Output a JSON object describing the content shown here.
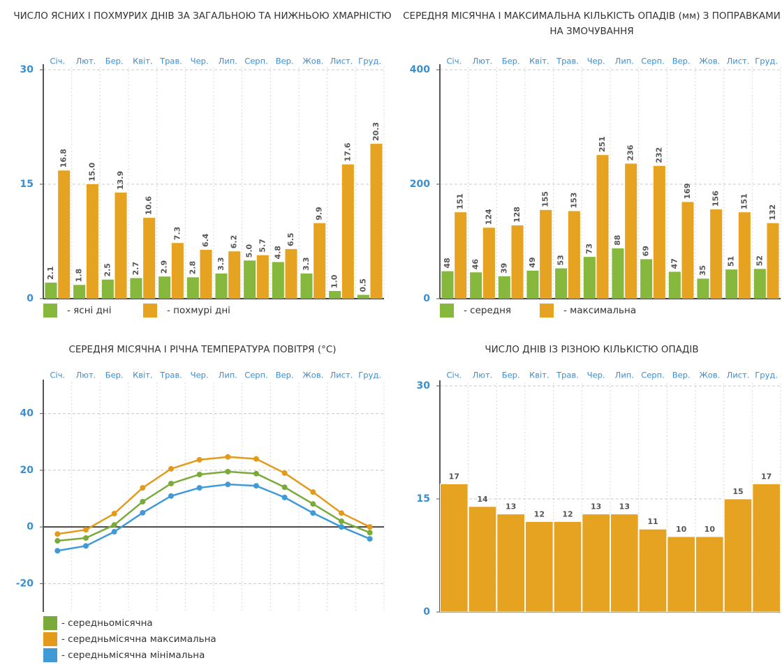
{
  "chart_data": [
    {
      "type": "bar",
      "title": "ЧИСЛО ЯСНИХ І ПОХМУРИХ ДНІВ ЗА ЗАГАЛЬНОЮ ТА НИЖНЬОЮ ХМАРНІСТЮ",
      "categories": [
        "Січ.",
        "Лют.",
        "Бер.",
        "Квіт.",
        "Трав.",
        "Чер.",
        "Лип.",
        "Серп.",
        "Вер.",
        "Жов.",
        "Лист.",
        "Груд."
      ],
      "series": [
        {
          "name": "- ясні дні",
          "color": "#86b83e",
          "values": [
            2.1,
            1.8,
            2.5,
            2.7,
            2.9,
            2.8,
            3.3,
            5.0,
            4.8,
            3.3,
            1.0,
            0.5
          ],
          "value_labels": [
            "2.1",
            "1.8",
            "2.5",
            "2.7",
            "2.9",
            "2.8",
            "3.3",
            "5.0",
            "4.8",
            "3.3",
            "1.0",
            "0.5"
          ]
        },
        {
          "name": "- похмурі дні",
          "color": "#e6a322",
          "values": [
            16.8,
            15.0,
            13.9,
            10.6,
            7.3,
            6.4,
            6.2,
            5.7,
            6.5,
            9.9,
            17.6,
            20.3
          ],
          "value_labels": [
            "16.8",
            "15.0",
            "13.9",
            "10.6",
            "7.3",
            "6.4",
            "6.2",
            "5.7",
            "6.5",
            "9.9",
            "17.6",
            "20.3"
          ]
        }
      ],
      "ylim": [
        0,
        30
      ],
      "yticks": [
        0,
        15,
        30
      ],
      "grid": true,
      "legend": "bottom-left"
    },
    {
      "type": "bar",
      "title": "СЕРЕДНЯ МІСЯЧНА І МАКСИМАЛЬНА КІЛЬКІСТЬ ОПАДІВ (мм) З ПОПРАВКАМИ НА ЗМОЧУВАННЯ",
      "categories": [
        "Січ.",
        "Лют.",
        "Бер.",
        "Квіт.",
        "Трав.",
        "Чер.",
        "Лип.",
        "Серп.",
        "Вер.",
        "Жов.",
        "Лист.",
        "Груд."
      ],
      "series": [
        {
          "name": "- середня",
          "color": "#86b83e",
          "values": [
            48,
            46,
            39,
            49,
            53,
            73,
            88,
            69,
            47,
            35,
            51,
            52
          ]
        },
        {
          "name": "- максимальна",
          "color": "#e6a322",
          "values": [
            151,
            124,
            128,
            155,
            153,
            251,
            236,
            232,
            169,
            156,
            151,
            132
          ]
        }
      ],
      "ylim": [
        0,
        400
      ],
      "yticks": [
        0,
        200,
        400
      ],
      "grid": true,
      "legend": "bottom-left"
    },
    {
      "type": "line",
      "title": "СЕРЕДНЯ МІСЯЧНА І РІЧНА ТЕМПЕРАТУРА ПОВІТРЯ (°С)",
      "categories": [
        "Січ.",
        "Лют.",
        "Бер.",
        "Квіт.",
        "Трав.",
        "Чер.",
        "Лип.",
        "Серп.",
        "Вер.",
        "Жов.",
        "Лист.",
        "Груд."
      ],
      "series": [
        {
          "name": "- середньомісячна",
          "color": "#7aab3a",
          "values": [
            -4.9,
            -3.9,
            0.7,
            8.9,
            15.3,
            18.5,
            19.5,
            18.8,
            14.0,
            8.1,
            2.0,
            -2.0
          ]
        },
        {
          "name": "- середньмісячна максимальна",
          "color": "#e39a1a",
          "values": [
            -2.5,
            -1.0,
            4.7,
            13.8,
            20.5,
            23.7,
            24.7,
            24.0,
            19.0,
            12.3,
            4.9,
            0.0
          ]
        },
        {
          "name": "- середньмісячна мінімальна",
          "color": "#3f9ad8",
          "values": [
            -8.4,
            -6.7,
            -1.7,
            5.0,
            10.9,
            13.8,
            15.0,
            14.5,
            10.4,
            4.9,
            0.0,
            -4.2
          ]
        }
      ],
      "ylim": [
        -30,
        50
      ],
      "yticks": [
        -20,
        0,
        20,
        40
      ],
      "grid": true,
      "legend": "bottom-left"
    },
    {
      "type": "bar",
      "title": "ЧИСЛО ДНІВ ІЗ РІЗНОЮ КІЛЬКІСТЮ ОПАДІВ",
      "categories": [
        "Січ.",
        "Лют.",
        "Бер.",
        "Квіт.",
        "Трав.",
        "Чер.",
        "Лип.",
        "Серп.",
        "Вер.",
        "Жов.",
        "Лист.",
        "Груд."
      ],
      "values": [
        17,
        14,
        13,
        12,
        12,
        13,
        13,
        11,
        10,
        10,
        15,
        17
      ],
      "color": "#e6a322",
      "ylim": [
        0,
        30
      ],
      "yticks": [
        0,
        15,
        30
      ],
      "grid": true
    }
  ]
}
